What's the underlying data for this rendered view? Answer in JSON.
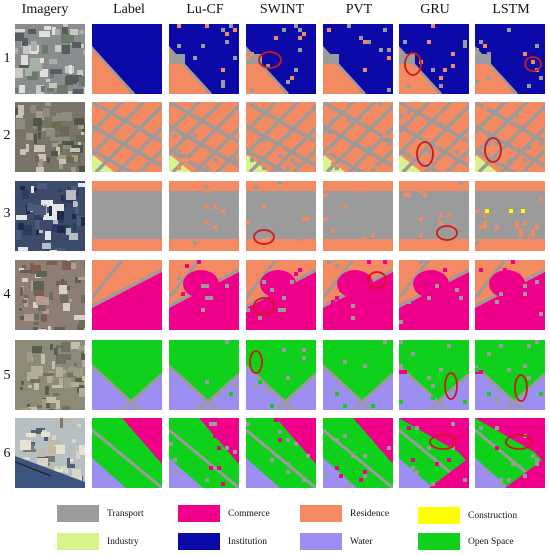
{
  "headers": [
    "Imagery",
    "Label",
    "Lu-CF",
    "SWINT",
    "PVT",
    "GRU",
    "LSTM"
  ],
  "rows": [
    "1",
    "2",
    "3",
    "4",
    "5",
    "6"
  ],
  "colors": {
    "transport": "#9b9b9b",
    "commerce": "#f0008a",
    "residence": "#f38a62",
    "construction": "#ffff00",
    "industry": "#d6f48c",
    "institution": "#0b0aa8",
    "water": "#9d8ff2",
    "openspace": "#0fd01a",
    "highlight": "#d01818"
  },
  "legend": [
    {
      "label": "Transport",
      "color": "#9b9b9b"
    },
    {
      "label": "Commerce",
      "color": "#f0008a"
    },
    {
      "label": "Residence",
      "color": "#f38a62"
    },
    {
      "label": "Construction",
      "color": "#ffff00"
    },
    {
      "label": "Industry",
      "color": "#d6f48c"
    },
    {
      "label": "Institution",
      "color": "#0b0aa8"
    },
    {
      "label": "Water",
      "color": "#9d8ff2"
    },
    {
      "label": "Open Space",
      "color": "#0fd01a"
    }
  ]
}
